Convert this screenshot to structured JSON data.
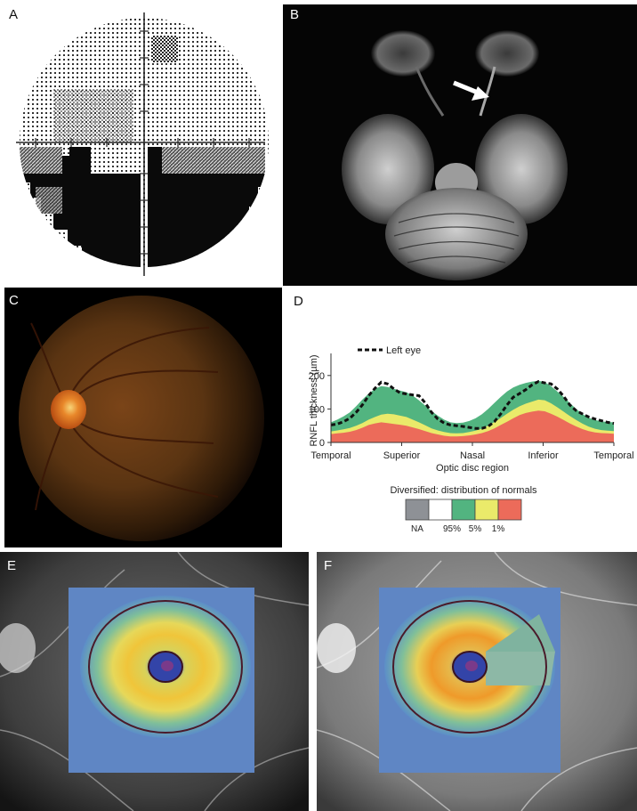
{
  "panels": {
    "a": {
      "label": "A"
    },
    "b": {
      "label": "B"
    },
    "c": {
      "label": "C"
    },
    "d": {
      "label": "D"
    },
    "e": {
      "label": "E"
    },
    "f": {
      "label": "F"
    }
  },
  "colors": {
    "na": "#8e9196",
    "normal": "#ffffff",
    "p95_5": "#52b480",
    "p5_1": "#eaea6a",
    "p1": "#ec6b5a"
  },
  "chart_data": {
    "type": "area",
    "xlabel": "Optic disc region",
    "ylabel": "RNFL thickness (µm)",
    "ylim": [
      0,
      250
    ],
    "yticks": [
      0,
      100,
      200
    ],
    "categories": [
      "Temporal",
      "Superior",
      "Nasal",
      "Inferior",
      "Temporal"
    ],
    "x": [
      0,
      8,
      16,
      24,
      32,
      40,
      48,
      56,
      64,
      72,
      80,
      88,
      96,
      104,
      112,
      120,
      128,
      136,
      144,
      152,
      160,
      168,
      176,
      184,
      192,
      200,
      208,
      216,
      224,
      232,
      240,
      248,
      256,
      264,
      272,
      280,
      288,
      296,
      304,
      312,
      320,
      328,
      336,
      344,
      352,
      360
    ],
    "x_tick_positions": [
      0,
      90,
      180,
      270,
      360
    ],
    "bands": [
      {
        "name": "1%",
        "color": "#ec6b5a",
        "values": [
          25,
          27,
          29,
          32,
          37,
          44,
          52,
          57,
          60,
          58,
          55,
          53,
          50,
          45,
          40,
          34,
          28,
          24,
          20,
          18,
          18,
          19,
          21,
          24,
          28,
          34,
          42,
          52,
          62,
          72,
          82,
          88,
          92,
          95,
          93,
          86,
          77,
          67,
          57,
          48,
          40,
          34,
          30,
          28,
          27,
          26
        ]
      },
      {
        "name": "5%",
        "color": "#eaea6a",
        "values": [
          33,
          36,
          39,
          43,
          50,
          58,
          68,
          76,
          83,
          86,
          84,
          80,
          76,
          68,
          60,
          51,
          42,
          36,
          31,
          28,
          27,
          28,
          31,
          35,
          41,
          50,
          61,
          73,
          86,
          98,
          108,
          116,
          122,
          128,
          126,
          117,
          105,
          92,
          79,
          67,
          56,
          47,
          41,
          37,
          35,
          34
        ]
      },
      {
        "name": "95%",
        "color": "#52b480",
        "values": [
          60,
          68,
          78,
          90,
          108,
          128,
          146,
          160,
          168,
          166,
          160,
          155,
          150,
          140,
          126,
          110,
          94,
          80,
          68,
          60,
          58,
          59,
          64,
          72,
          84,
          100,
          118,
          136,
          152,
          164,
          172,
          178,
          182,
          184,
          180,
          168,
          152,
          136,
          118,
          100,
          85,
          74,
          67,
          63,
          61,
          60
        ]
      }
    ],
    "series": [
      {
        "name": "Left eye",
        "style": "dashed",
        "color": "#111111",
        "values": [
          52,
          55,
          62,
          72,
          90,
          112,
          140,
          162,
          180,
          175,
          160,
          148,
          145,
          142,
          140,
          118,
          90,
          70,
          58,
          52,
          50,
          48,
          45,
          42,
          42,
          48,
          62,
          85,
          112,
          135,
          146,
          158,
          172,
          182,
          178,
          175,
          160,
          138,
          112,
          95,
          85,
          76,
          70,
          65,
          60,
          57
        ]
      }
    ],
    "legend_label": "Left eye",
    "legend_title": "Diversified: distribution of normals",
    "legend_items": [
      {
        "label": "NA",
        "color": "#8e9196"
      },
      {
        "label": "95%",
        "color": "#ffffff"
      },
      {
        "label": "5%",
        "color": "#52b480"
      },
      {
        "label": "1%",
        "color": "#eaea6a"
      },
      {
        "label": "",
        "color": "#ec6b5a"
      }
    ]
  }
}
